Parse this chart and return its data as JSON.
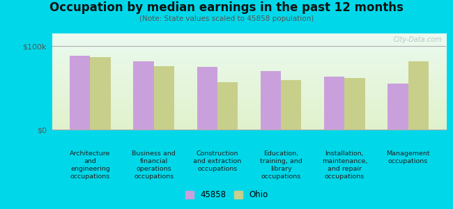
{
  "title": "Occupation by median earnings in the past 12 months",
  "subtitle": "(Note: State values scaled to 45858 population)",
  "categories": [
    "Architecture\nand\nengineering\noccupations",
    "Business and\nfinancial\noperations\noccupations",
    "Construction\nand extraction\noccupations",
    "Education,\ntraining, and\nlibrary\noccupations",
    "Installation,\nmaintenance,\nand repair\noccupations",
    "Management\noccupations"
  ],
  "values_45858": [
    88000,
    82000,
    75000,
    70000,
    63000,
    55000
  ],
  "values_ohio": [
    87000,
    76000,
    57000,
    59000,
    62000,
    82000
  ],
  "color_45858": "#c9a0dc",
  "color_ohio": "#c8cf8a",
  "ylim": [
    0,
    115000
  ],
  "yticks": [
    0,
    100000
  ],
  "ytick_labels": [
    "$0",
    "$100k"
  ],
  "legend_label_1": "45858",
  "legend_label_2": "Ohio",
  "bar_width": 0.32,
  "bg_outer": "#00d8ea",
  "watermark": "City-Data.com"
}
